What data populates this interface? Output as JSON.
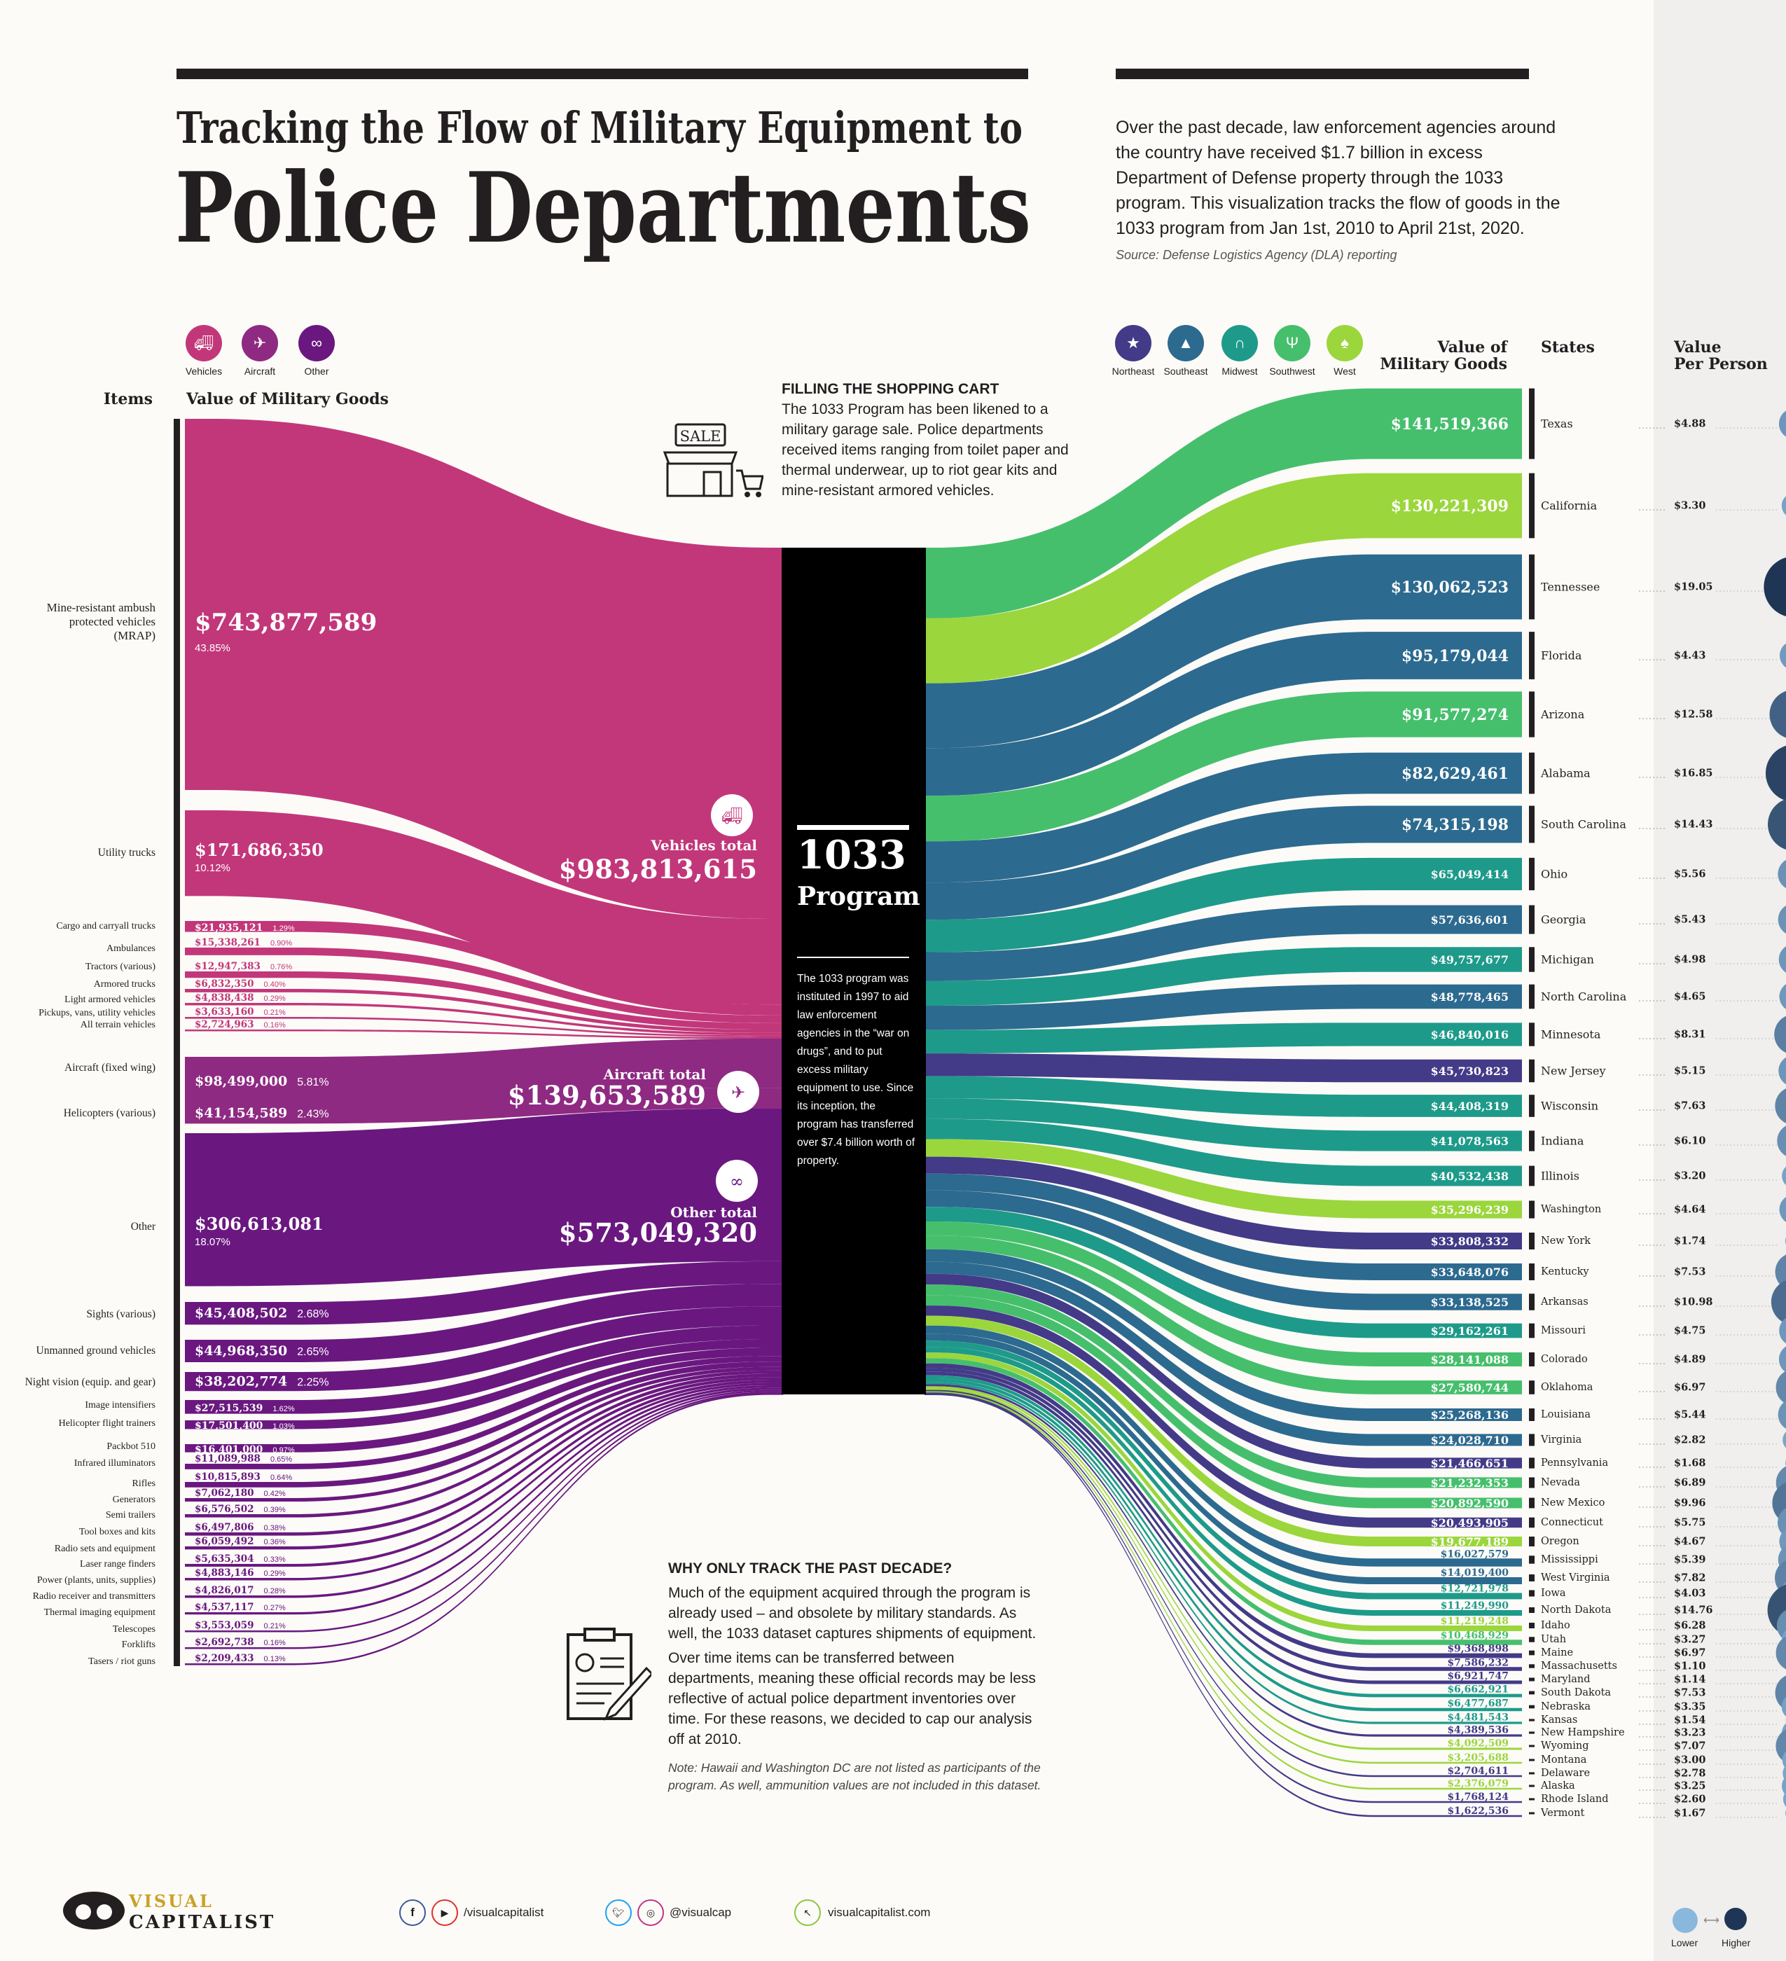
{
  "title": {
    "line1": "Tracking the Flow of Military Equipment to",
    "line2": "Police Departments"
  },
  "intro": "Over the past decade, law enforcement agencies around the country have received $1.7 billion in excess Department of Defense property through the 1033 program. This visualization tracks the flow of goods in the 1033 program from Jan 1st, 2010 to April 21st, 2020.",
  "source": "Source: Defense Logistics Agency (DLA) reporting",
  "category_legend": [
    {
      "label": "Vehicles",
      "icon": "truck-icon",
      "color": "#c2377a"
    },
    {
      "label": "Aircraft",
      "icon": "helicopter-icon",
      "color": "#8e2a82"
    },
    {
      "label": "Other",
      "icon": "binoculars-icon",
      "color": "#6a1880"
    }
  ],
  "region_legend": [
    {
      "label": "Northeast",
      "icon": "statue-of-liberty-icon",
      "color": "#433a88"
    },
    {
      "label": "Southeast",
      "icon": "lighthouse-icon",
      "color": "#2d6a8f"
    },
    {
      "label": "Midwest",
      "icon": "arch-icon",
      "color": "#1e9a8a"
    },
    {
      "label": "Southwest",
      "icon": "cactus-icon",
      "color": "#46bf6d"
    },
    {
      "label": "West",
      "icon": "tree-icon",
      "color": "#9bd63c"
    }
  ],
  "headers": {
    "items": "Items",
    "left_value": "Value of Military Goods",
    "right_value_1": "Value of",
    "right_value_2": "Military Goods",
    "states": "States",
    "per_person_1": "Value",
    "per_person_2": "Per Person"
  },
  "shopping_cart": {
    "heading": "FILLING THE SHOPPING CART",
    "body": "The 1033 Program has been likened to a military garage sale. Police departments received items ranging from toilet paper and thermal underwear, up to riot gear kits and mine-resistant armored vehicles.",
    "sign": "SALE"
  },
  "program": {
    "line1": "1033",
    "line2": "Program",
    "body": "The 1033 program was instituted in 1997 to aid law enforcement agencies in the “war on drugs”, and to put excess military equipment to use. Since its inception, the program has transferred over $7.4 billion worth of property."
  },
  "totals": [
    {
      "label": "Vehicles total",
      "value": "$983,813,615",
      "icon": "truck-icon"
    },
    {
      "label": "Aircraft total",
      "value": "$139,653,589",
      "icon": "helicopter-icon"
    },
    {
      "label": "Other total",
      "value": "$573,049,320",
      "icon": "binoculars-icon"
    }
  ],
  "why": {
    "heading": "WHY ONLY TRACK THE PAST DECADE?",
    "p1": "Much of the equipment acquired through the program is already used – and obsolete by military standards. As well, the 1033 dataset captures shipments of equipment.",
    "p2": "Over time items can be transferred between departments, meaning these official records may be less reflective of actual police department inventories over time. For these reasons, we decided to cap our analysis off at 2010.",
    "note": "Note: Hawaii and Washington DC are not listed as participants of the program. As well, ammunition values are not included in this dataset."
  },
  "size_legend": {
    "low": "Lower",
    "high": "Higher",
    "low_color": "#8ab8dc",
    "high_color": "#1f3556"
  },
  "footer": {
    "brand_1": "VISUAL",
    "brand_2": "CAPITALIST",
    "social_1": "/visualcapitalist",
    "social_2": "@visualcap",
    "website": "visualcapitalist.com"
  },
  "chart_data": {
    "type": "sankey",
    "colors": {
      "Vehicles": "#c2377a",
      "Aircraft": "#8e2a82",
      "Other": "#6a1880",
      "program": "#000000"
    },
    "center_node": "1033 Program",
    "items": [
      {
        "name": "Mine-resistant ambush protected vehicles (MRAP)",
        "value": 743877589,
        "label": "$743,877,589",
        "pct": "43.85%",
        "group": "Vehicles"
      },
      {
        "name": "Utility trucks",
        "value": 171686350,
        "label": "$171,686,350",
        "pct": "10.12%",
        "group": "Vehicles"
      },
      {
        "name": "Cargo and carryall trucks",
        "value": 21935121,
        "label": "$21,935,121",
        "pct": "1.29%",
        "group": "Vehicles"
      },
      {
        "name": "Ambulances",
        "value": 15338261,
        "label": "$15,338,261",
        "pct": "0.90%",
        "group": "Vehicles"
      },
      {
        "name": "Tractors (various)",
        "value": 12947383,
        "label": "$12,947,383",
        "pct": "0.76%",
        "group": "Vehicles"
      },
      {
        "name": "Armored trucks",
        "value": 6832350,
        "label": "$6,832,350",
        "pct": "0.40%",
        "group": "Vehicles"
      },
      {
        "name": "Light armored vehicles",
        "value": 4838438,
        "label": "$4,838,438",
        "pct": "0.29%",
        "group": "Vehicles"
      },
      {
        "name": "Pickups, vans, utility vehicles",
        "value": 3633160,
        "label": "$3,633,160",
        "pct": "0.21%",
        "group": "Vehicles"
      },
      {
        "name": "All terrain vehicles",
        "value": 2724963,
        "label": "$2,724,963",
        "pct": "0.16%",
        "group": "Vehicles"
      },
      {
        "name": "Aircraft (fixed wing)",
        "value": 98499000,
        "label": "$98,499,000",
        "pct": "5.81%",
        "group": "Aircraft"
      },
      {
        "name": "Helicopters (various)",
        "value": 41154589,
        "label": "$41,154,589",
        "pct": "2.43%",
        "group": "Aircraft"
      },
      {
        "name": "Other",
        "value": 306613081,
        "label": "$306,613,081",
        "pct": "18.07%",
        "group": "Other"
      },
      {
        "name": "Sights (various)",
        "value": 45408502,
        "label": "$45,408,502",
        "pct": "2.68%",
        "group": "Other"
      },
      {
        "name": "Unmanned ground vehicles",
        "value": 44968350,
        "label": "$44,968,350",
        "pct": "2.65%",
        "group": "Other"
      },
      {
        "name": "Night vision (equip. and gear)",
        "value": 38202774,
        "label": "$38,202,774",
        "pct": "2.25%",
        "group": "Other"
      },
      {
        "name": "Image intensifiers",
        "value": 27515539,
        "label": "$27,515,539",
        "pct": "1.62%",
        "group": "Other"
      },
      {
        "name": "Helicopter flight trainers",
        "value": 17501400,
        "label": "$17,501,400",
        "pct": "1.03%",
        "group": "Other"
      },
      {
        "name": "Packbot 510",
        "value": 16401000,
        "label": "$16,401,000",
        "pct": "0.97%",
        "group": "Other"
      },
      {
        "name": "Infrared illuminators",
        "value": 11089988,
        "label": "$11,089,988",
        "pct": "0.65%",
        "group": "Other"
      },
      {
        "name": "Rifles",
        "value": 10815893,
        "label": "$10,815,893",
        "pct": "0.64%",
        "group": "Other"
      },
      {
        "name": "Generators",
        "value": 7062180,
        "label": "$7,062,180",
        "pct": "0.42%",
        "group": "Other"
      },
      {
        "name": "Semi trailers",
        "value": 6576502,
        "label": "$6,576,502",
        "pct": "0.39%",
        "group": "Other"
      },
      {
        "name": "Tool boxes and kits",
        "value": 6497806,
        "label": "$6,497,806",
        "pct": "0.38%",
        "group": "Other"
      },
      {
        "name": "Radio sets and equipment",
        "value": 6059492,
        "label": "$6,059,492",
        "pct": "0.36%",
        "group": "Other"
      },
      {
        "name": "Laser range finders",
        "value": 5635304,
        "label": "$5,635,304",
        "pct": "0.33%",
        "group": "Other"
      },
      {
        "name": "Power (plants, units, supplies)",
        "value": 4883146,
        "label": "$4,883,146",
        "pct": "0.29%",
        "group": "Other"
      },
      {
        "name": "Radio receiver and transmitters",
        "value": 4826017,
        "label": "$4,826,017",
        "pct": "0.28%",
        "group": "Other"
      },
      {
        "name": "Thermal imaging equipment",
        "value": 4537117,
        "label": "$4,537,117",
        "pct": "0.27%",
        "group": "Other"
      },
      {
        "name": "Telescopes",
        "value": 3553059,
        "label": "$3,553,059",
        "pct": "0.21%",
        "group": "Other"
      },
      {
        "name": "Forklifts",
        "value": 2692738,
        "label": "$2,692,738",
        "pct": "0.16%",
        "group": "Other"
      },
      {
        "name": "Tasers / riot guns",
        "value": 2209433,
        "label": "$2,209,433",
        "pct": "0.13%",
        "group": "Other"
      }
    ],
    "states": [
      {
        "name": "Texas",
        "value": 141519366,
        "label": "$141,519,366",
        "per_person": 4.88,
        "pp_label": "$4.88",
        "region": "Southwest"
      },
      {
        "name": "California",
        "value": 130221309,
        "label": "$130,221,309",
        "per_person": 3.3,
        "pp_label": "$3.30",
        "region": "West"
      },
      {
        "name": "Tennessee",
        "value": 130062523,
        "label": "$130,062,523",
        "per_person": 19.05,
        "pp_label": "$19.05",
        "region": "Southeast"
      },
      {
        "name": "Florida",
        "value": 95179044,
        "label": "$95,179,044",
        "per_person": 4.43,
        "pp_label": "$4.43",
        "region": "Southeast"
      },
      {
        "name": "Arizona",
        "value": 91577274,
        "label": "$91,577,274",
        "per_person": 12.58,
        "pp_label": "$12.58",
        "region": "Southwest"
      },
      {
        "name": "Alabama",
        "value": 82629461,
        "label": "$82,629,461",
        "per_person": 16.85,
        "pp_label": "$16.85",
        "region": "Southeast"
      },
      {
        "name": "South Carolina",
        "value": 74315198,
        "label": "$74,315,198",
        "per_person": 14.43,
        "pp_label": "$14.43",
        "region": "Southeast"
      },
      {
        "name": "Ohio",
        "value": 65049414,
        "label": "$65,049,414",
        "per_person": 5.56,
        "pp_label": "$5.56",
        "region": "Midwest"
      },
      {
        "name": "Georgia",
        "value": 57636601,
        "label": "$57,636,601",
        "per_person": 5.43,
        "pp_label": "$5.43",
        "region": "Southeast"
      },
      {
        "name": "Michigan",
        "value": 49757677,
        "label": "$49,757,677",
        "per_person": 4.98,
        "pp_label": "$4.98",
        "region": "Midwest"
      },
      {
        "name": "North Carolina",
        "value": 48778465,
        "label": "$48,778,465",
        "per_person": 4.65,
        "pp_label": "$4.65",
        "region": "Southeast"
      },
      {
        "name": "Minnesota",
        "value": 46840016,
        "label": "$46,840,016",
        "per_person": 8.31,
        "pp_label": "$8.31",
        "region": "Midwest"
      },
      {
        "name": "New Jersey",
        "value": 45730823,
        "label": "$45,730,823",
        "per_person": 5.15,
        "pp_label": "$5.15",
        "region": "Northeast"
      },
      {
        "name": "Wisconsin",
        "value": 44408319,
        "label": "$44,408,319",
        "per_person": 7.63,
        "pp_label": "$7.63",
        "region": "Midwest"
      },
      {
        "name": "Indiana",
        "value": 41078563,
        "label": "$41,078,563",
        "per_person": 6.1,
        "pp_label": "$6.10",
        "region": "Midwest"
      },
      {
        "name": "Illinois",
        "value": 40532438,
        "label": "$40,532,438",
        "per_person": 3.2,
        "pp_label": "$3.20",
        "region": "Midwest"
      },
      {
        "name": "Washington",
        "value": 35296239,
        "label": "$35,296,239",
        "per_person": 4.64,
        "pp_label": "$4.64",
        "region": "West"
      },
      {
        "name": "New York",
        "value": 33808332,
        "label": "$33,808,332",
        "per_person": 1.74,
        "pp_label": "$1.74",
        "region": "Northeast"
      },
      {
        "name": "Kentucky",
        "value": 33648076,
        "label": "$33,648,076",
        "per_person": 7.53,
        "pp_label": "$7.53",
        "region": "Southeast"
      },
      {
        "name": "Arkansas",
        "value": 33138525,
        "label": "$33,138,525",
        "per_person": 10.98,
        "pp_label": "$10.98",
        "region": "Southeast"
      },
      {
        "name": "Missouri",
        "value": 29162261,
        "label": "$29,162,261",
        "per_person": 4.75,
        "pp_label": "$4.75",
        "region": "Midwest"
      },
      {
        "name": "Colorado",
        "value": 28141088,
        "label": "$28,141,088",
        "per_person": 4.89,
        "pp_label": "$4.89",
        "region": "Southwest"
      },
      {
        "name": "Oklahoma",
        "value": 27580744,
        "label": "$27,580,744",
        "per_person": 6.97,
        "pp_label": "$6.97",
        "region": "Southwest"
      },
      {
        "name": "Louisiana",
        "value": 25268136,
        "label": "$25,268,136",
        "per_person": 5.44,
        "pp_label": "$5.44",
        "region": "Southeast"
      },
      {
        "name": "Virginia",
        "value": 24028710,
        "label": "$24,028,710",
        "per_person": 2.82,
        "pp_label": "$2.82",
        "region": "Southeast"
      },
      {
        "name": "Pennsylvania",
        "value": 21466651,
        "label": "$21,466,651",
        "per_person": 1.68,
        "pp_label": "$1.68",
        "region": "Northeast"
      },
      {
        "name": "Nevada",
        "value": 21232353,
        "label": "$21,232,353",
        "per_person": 6.89,
        "pp_label": "$6.89",
        "region": "Southwest"
      },
      {
        "name": "New Mexico",
        "value": 20892590,
        "label": "$20,892,590",
        "per_person": 9.96,
        "pp_label": "$9.96",
        "region": "Southwest"
      },
      {
        "name": "Connecticut",
        "value": 20493905,
        "label": "$20,493,905",
        "per_person": 5.75,
        "pp_label": "$5.75",
        "region": "Northeast"
      },
      {
        "name": "Oregon",
        "value": 19677189,
        "label": "$19,677,189",
        "per_person": 4.67,
        "pp_label": "$4.67",
        "region": "West"
      },
      {
        "name": "Mississippi",
        "value": 16027579,
        "label": "$16,027,579",
        "per_person": 5.39,
        "pp_label": "$5.39",
        "region": "Southeast"
      },
      {
        "name": "West Virginia",
        "value": 14019400,
        "label": "$14,019,400",
        "per_person": 7.82,
        "pp_label": "$7.82",
        "region": "Southeast"
      },
      {
        "name": "Iowa",
        "value": 12721978,
        "label": "$12,721,978",
        "per_person": 4.03,
        "pp_label": "$4.03",
        "region": "Midwest"
      },
      {
        "name": "North Dakota",
        "value": 11249990,
        "label": "$11,249,990",
        "per_person": 14.76,
        "pp_label": "$14.76",
        "region": "Midwest"
      },
      {
        "name": "Idaho",
        "value": 11219248,
        "label": "$11,219,248",
        "per_person": 6.28,
        "pp_label": "$6.28",
        "region": "West"
      },
      {
        "name": "Utah",
        "value": 10468929,
        "label": "$10,468,929",
        "per_person": 3.27,
        "pp_label": "$3.27",
        "region": "Southwest"
      },
      {
        "name": "Maine",
        "value": 9368898,
        "label": "$9,368,898",
        "per_person": 6.97,
        "pp_label": "$6.97",
        "region": "Northeast"
      },
      {
        "name": "Massachusetts",
        "value": 7586232,
        "label": "$7,586,232",
        "per_person": 1.1,
        "pp_label": "$1.10",
        "region": "Northeast"
      },
      {
        "name": "Maryland",
        "value": 6921747,
        "label": "$6,921,747",
        "per_person": 1.14,
        "pp_label": "$1.14",
        "region": "Northeast"
      },
      {
        "name": "South Dakota",
        "value": 6662921,
        "label": "$6,662,921",
        "per_person": 7.53,
        "pp_label": "$7.53",
        "region": "Midwest"
      },
      {
        "name": "Nebraska",
        "value": 6477687,
        "label": "$6,477,687",
        "per_person": 3.35,
        "pp_label": "$3.35",
        "region": "Midwest"
      },
      {
        "name": "Kansas",
        "value": 4481543,
        "label": "$4,481,543",
        "per_person": 1.54,
        "pp_label": "$1.54",
        "region": "Midwest"
      },
      {
        "name": "New Hampshire",
        "value": 4389536,
        "label": "$4,389,536",
        "per_person": 3.23,
        "pp_label": "$3.23",
        "region": "Northeast"
      },
      {
        "name": "Wyoming",
        "value": 4092509,
        "label": "$4,092,509",
        "per_person": 7.07,
        "pp_label": "$7.07",
        "region": "West"
      },
      {
        "name": "Montana",
        "value": 3205688,
        "label": "$3,205,688",
        "per_person": 3.0,
        "pp_label": "$3.00",
        "region": "West"
      },
      {
        "name": "Delaware",
        "value": 2704611,
        "label": "$2,704,611",
        "per_person": 2.78,
        "pp_label": "$2.78",
        "region": "Northeast"
      },
      {
        "name": "Alaska",
        "value": 2376079,
        "label": "$2,376,079",
        "per_person": 3.25,
        "pp_label": "$3.25",
        "region": "West"
      },
      {
        "name": "Rhode Island",
        "value": 1768124,
        "label": "$1,768,124",
        "per_person": 2.6,
        "pp_label": "$2.60",
        "region": "Northeast"
      },
      {
        "name": "Vermont",
        "value": 1622536,
        "label": "$1,622,536",
        "per_person": 1.67,
        "pp_label": "$1.67",
        "region": "Northeast"
      }
    ]
  }
}
